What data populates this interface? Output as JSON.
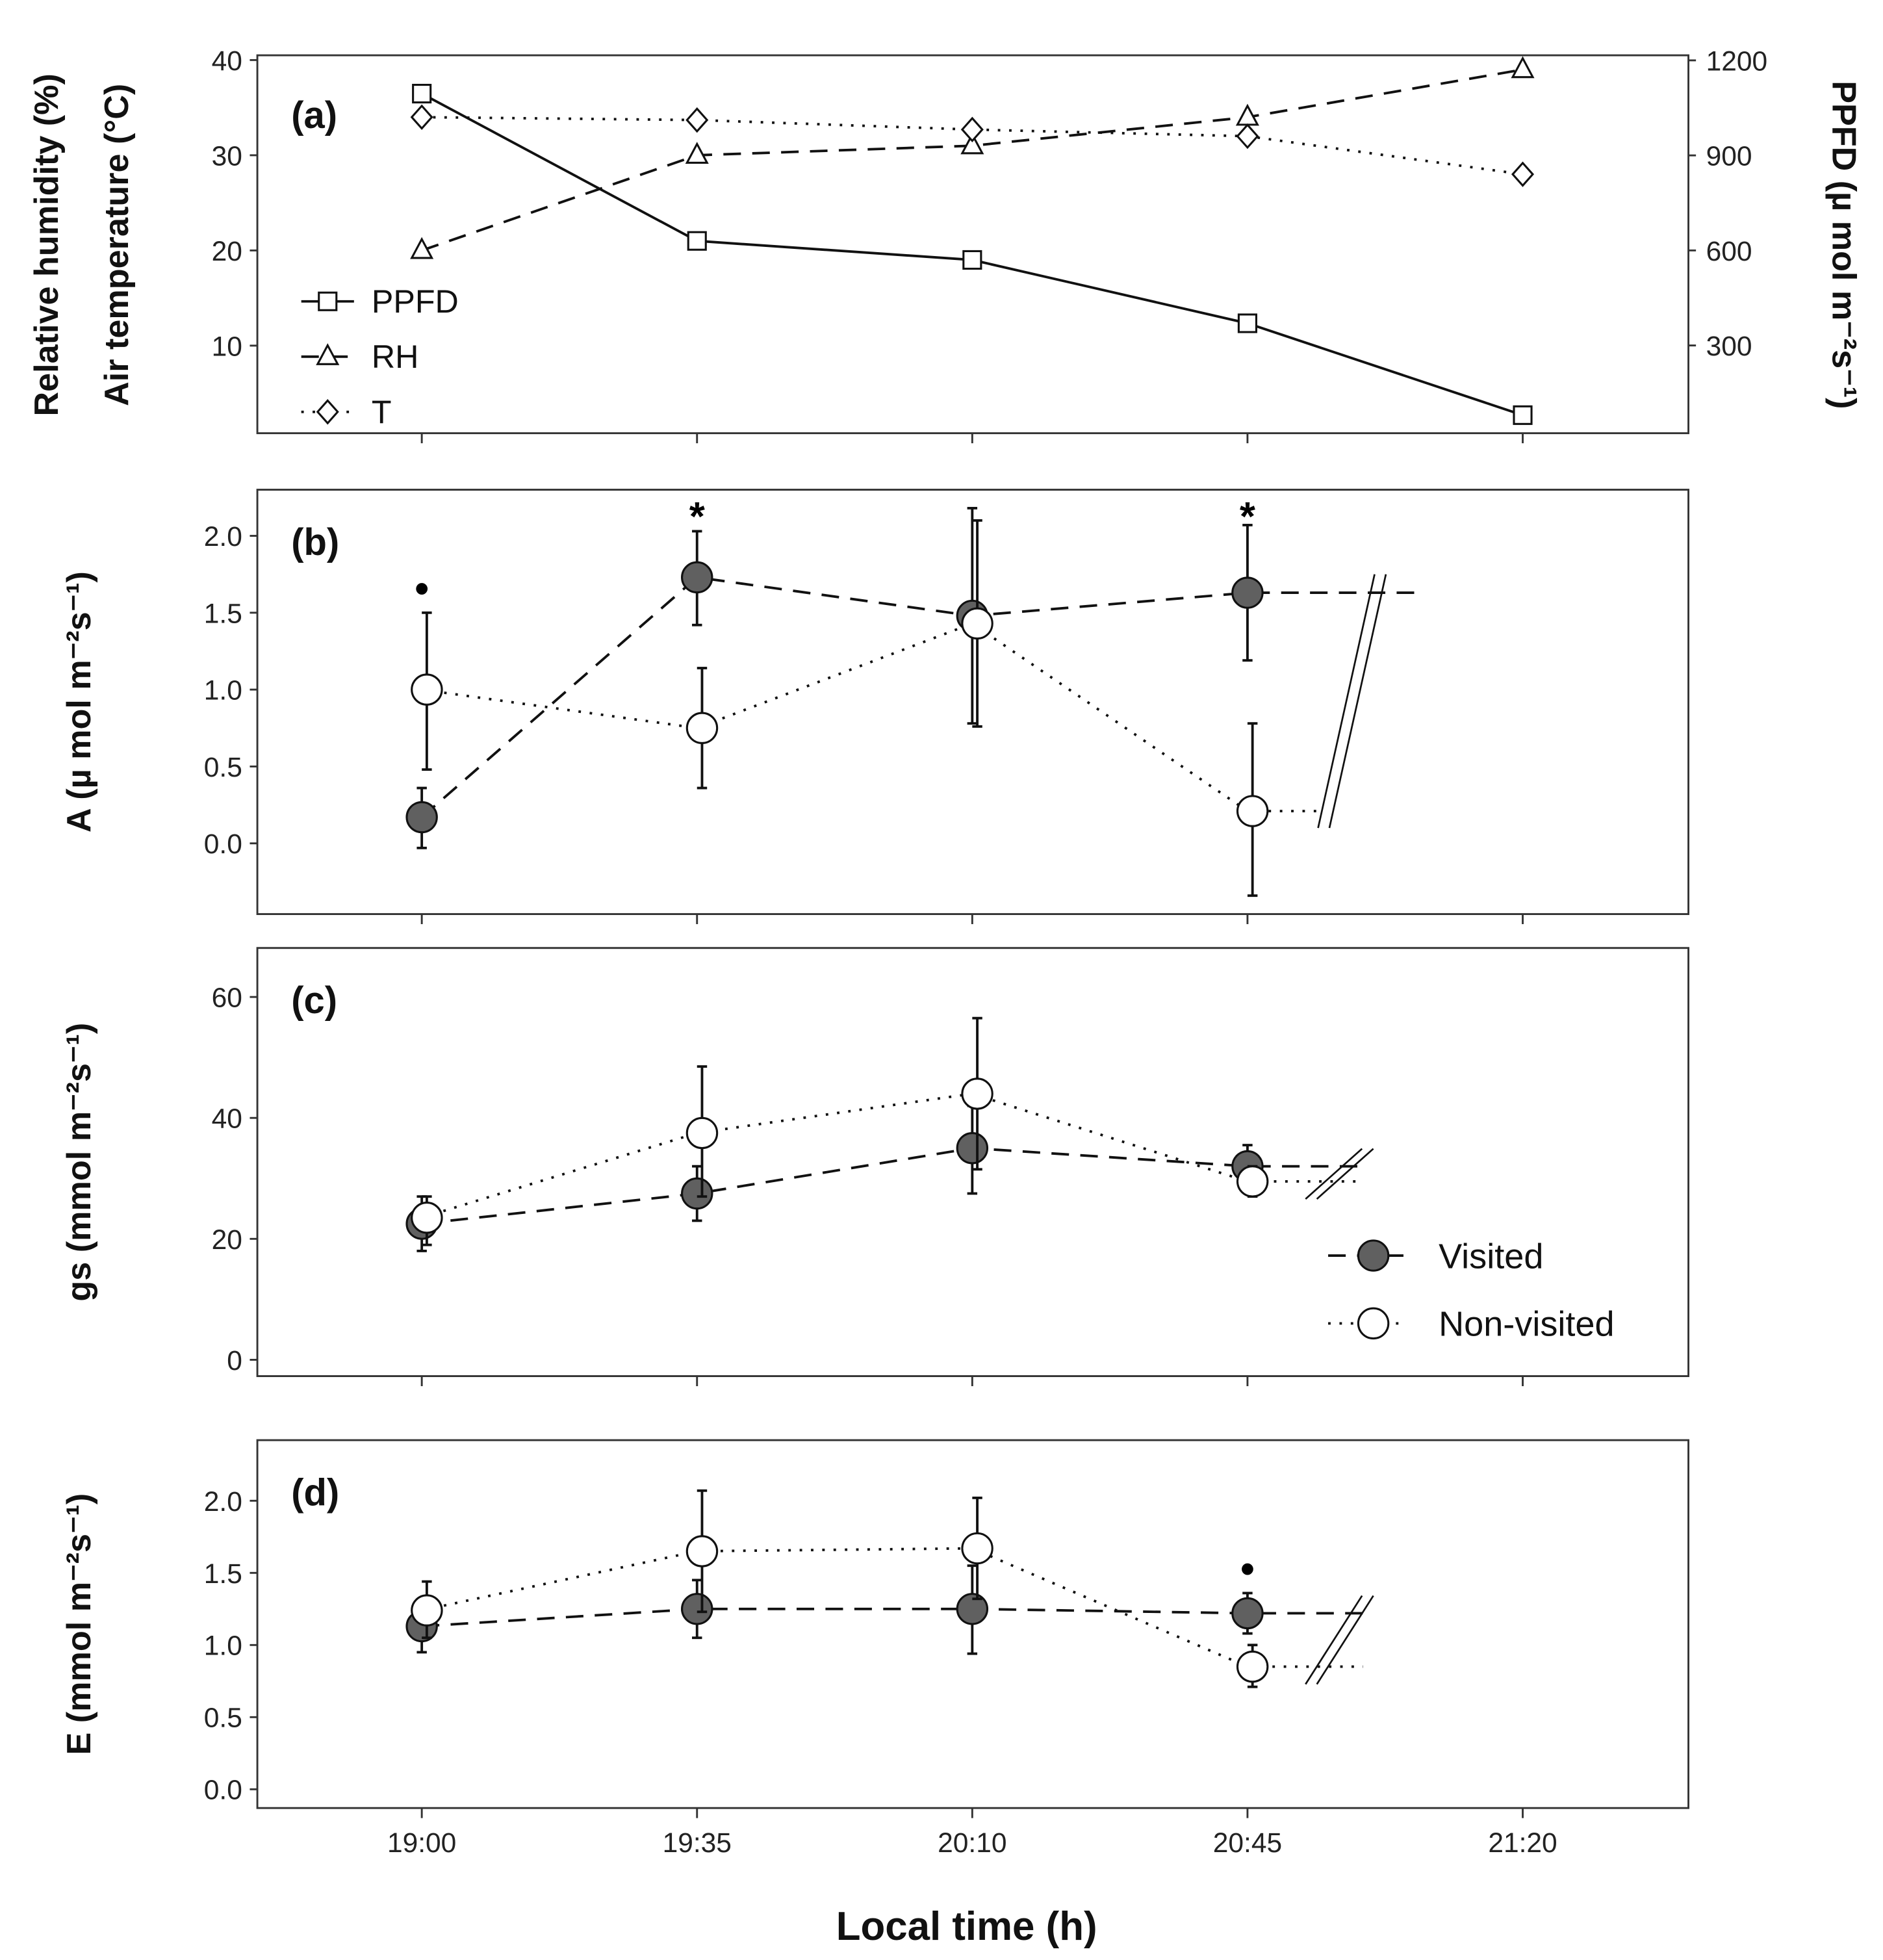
{
  "chart_data": [
    {
      "panel": "(a)",
      "type": "line",
      "x": [
        "19:00",
        "19:35",
        "20:10",
        "20:45",
        "21:20"
      ],
      "ylabel_left": [
        "Relative humidity (%)",
        "Air temperature (°C)"
      ],
      "ylabel_right": "PPFD (µ mol m⁻²s⁻¹)",
      "ylim_left": [
        0.8,
        40.5
      ],
      "ylim_right": [
        23,
        1216
      ],
      "yticks_left": [
        10,
        20,
        30,
        40
      ],
      "yticks_right": [
        300,
        600,
        900,
        1200
      ],
      "legend_position": "bottom-left",
      "series": [
        {
          "name": "PPFD",
          "axis": "right",
          "marker": "square",
          "line": "solid",
          "values": [
            1095,
            630,
            570,
            370,
            80
          ]
        },
        {
          "name": "RH",
          "axis": "left",
          "marker": "triangle",
          "line": "dashed",
          "values": [
            20,
            30,
            31,
            34,
            39
          ]
        },
        {
          "name": "T",
          "axis": "left",
          "marker": "diamond",
          "line": "dotted",
          "values": [
            34,
            33.7,
            32.7,
            32,
            28
          ]
        }
      ]
    },
    {
      "panel": "(b)",
      "type": "line",
      "ylabel": "A (µ mol m⁻²s⁻¹)",
      "ylim": [
        -0.46,
        2.3
      ],
      "yticks": [
        "0.0",
        "0.5",
        "1.0",
        "1.5",
        "2.0"
      ],
      "series": [
        {
          "name": "Visited",
          "values": [
            0.17,
            1.73,
            1.48,
            1.63
          ],
          "err_low": [
            -0.03,
            1.42,
            0.78,
            1.19
          ],
          "err_high": [
            0.36,
            2.03,
            2.18,
            2.07
          ]
        },
        {
          "name": "Non-visited",
          "values": [
            1.0,
            0.75,
            1.43,
            0.21
          ],
          "err_low": [
            0.48,
            0.36,
            0.76,
            -0.34
          ],
          "err_high": [
            1.5,
            1.14,
            2.1,
            0.78
          ]
        }
      ],
      "annotations": [
        {
          "x": "19:00",
          "text": "•",
          "y": 1.65
        },
        {
          "x": "19:35",
          "text": "*",
          "y": 2.2
        },
        {
          "x": "20:45",
          "text": "*",
          "y": 2.2
        }
      ]
    },
    {
      "panel": "(c)",
      "type": "line",
      "ylabel": "gs (mmol m⁻²s⁻¹)",
      "ylim": [
        -2.7,
        68.1
      ],
      "yticks": [
        "0",
        "20",
        "40",
        "60"
      ],
      "series": [
        {
          "name": "Visited",
          "values": [
            22.5,
            27.5,
            35,
            32
          ],
          "err_low": [
            18,
            23,
            27.5,
            28.5
          ],
          "err_high": [
            27,
            32,
            42,
            35.5
          ]
        },
        {
          "name": "Non-visited",
          "values": [
            23.5,
            37.5,
            44,
            29.5
          ],
          "err_low": [
            19,
            27,
            31.5,
            27
          ],
          "err_high": [
            27,
            48.5,
            56.5,
            32
          ]
        }
      ],
      "legend": [
        "Visited",
        "Non-visited"
      ],
      "legend_position": "bottom-right"
    },
    {
      "panel": "(d)",
      "type": "line",
      "ylabel": "E (mmol m⁻²s⁻¹)",
      "ylim": [
        -0.13,
        2.42
      ],
      "yticks": [
        "0.0",
        "0.5",
        "1.0",
        "1.5",
        "2.0"
      ],
      "series": [
        {
          "name": "Visited",
          "values": [
            1.13,
            1.25,
            1.25,
            1.22
          ],
          "err_low": [
            0.95,
            1.05,
            0.94,
            1.08
          ],
          "err_high": [
            1.3,
            1.45,
            1.55,
            1.36
          ]
        },
        {
          "name": "Non-visited",
          "values": [
            1.24,
            1.65,
            1.67,
            0.85
          ],
          "err_low": [
            1.05,
            1.23,
            1.32,
            0.71
          ],
          "err_high": [
            1.44,
            2.07,
            2.02,
            1.0
          ]
        }
      ],
      "annotations": [
        {
          "x": "20:45",
          "text": "•",
          "y": 1.52
        }
      ]
    }
  ],
  "xlabel": "Local time (h)",
  "colors": {
    "visited": "#606060",
    "nonvisited": "#ffffff",
    "line": "#111111"
  }
}
